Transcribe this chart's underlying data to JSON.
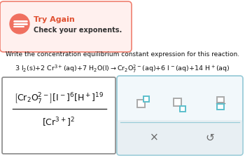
{
  "bg_color": "#ffffff",
  "banner_bg": "#fff0ee",
  "banner_border": "#f08070",
  "banner_icon_bg": "#f07060",
  "banner_title": "Try Again",
  "banner_title_color": "#e05030",
  "banner_subtitle": "Check your exponents.",
  "question_text": "Write the concentration equilibrium constant expression for this reaction.",
  "expr_border": "#888888",
  "right_box_bg": "#f2f8fb",
  "right_box_border": "#99ccd8",
  "icon_color": "#5bbfcc",
  "bottom_row_bg": "#e8eff3"
}
